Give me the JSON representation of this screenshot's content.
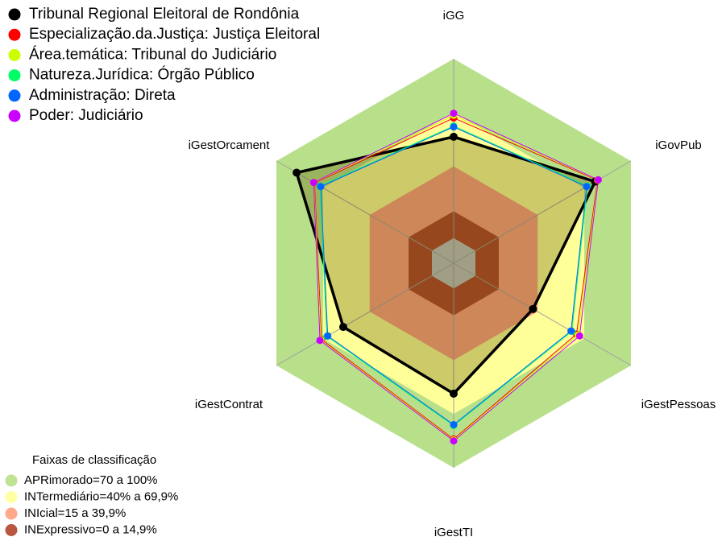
{
  "chart_data": {
    "type": "radar",
    "categories": [
      "iGG",
      "iGovPub",
      "iGestPessoas",
      "iGestTI",
      "iGestContrat",
      "iGestOrcament"
    ],
    "ylim": [
      -14,
      100
    ],
    "series": [
      {
        "name": "Tribunal Regional Eleitoral de Rondônia",
        "color": "#000000",
        "values": [
          56.5,
          77,
          37,
          58.7,
          57,
          87
        ]
      },
      {
        "name": "Especialização.da.Justiça: Justiça Eleitoral",
        "color": "#ff0000",
        "values": [
          67,
          78.5,
          65,
          84,
          71,
          75.5
        ]
      },
      {
        "name": "Área.temática: Tribunal do Judiciário",
        "color": "#ccff00",
        "values": [
          68.5,
          78.8,
          66,
          84.5,
          71.5,
          75.8
        ]
      },
      {
        "name": "Natureza.Jurídica: Órgão Público",
        "color": "#00ff66",
        "values": [
          62.5,
          72,
          62,
          76.5,
          67.5,
          72
        ]
      },
      {
        "name": "Administração: Direta",
        "color": "#0066ff",
        "values": [
          62,
          71.5,
          61.5,
          76,
          67,
          71.5
        ]
      },
      {
        "name": "Poder: Judiciário",
        "color": "#cc00ff",
        "values": [
          69.6,
          79,
          67,
          85,
          72,
          76
        ]
      }
    ],
    "bands_title": "Faixas de classificação",
    "bands": [
      {
        "label": "APRimorado=70 a 100%",
        "from": 70,
        "to": 100,
        "color": "#b8e08a"
      },
      {
        "label": "INTermediário=40% a 69,9%",
        "from": 40,
        "to": 70,
        "color": "#ffff99"
      },
      {
        "label": "INIcial=15 a 39,9%",
        "from": 15,
        "to": 40,
        "color": "#ff9f80"
      },
      {
        "label": "INExpressivo=0 a 14,9%",
        "from": 0,
        "to": 15,
        "color": "#b0442a"
      }
    ]
  }
}
